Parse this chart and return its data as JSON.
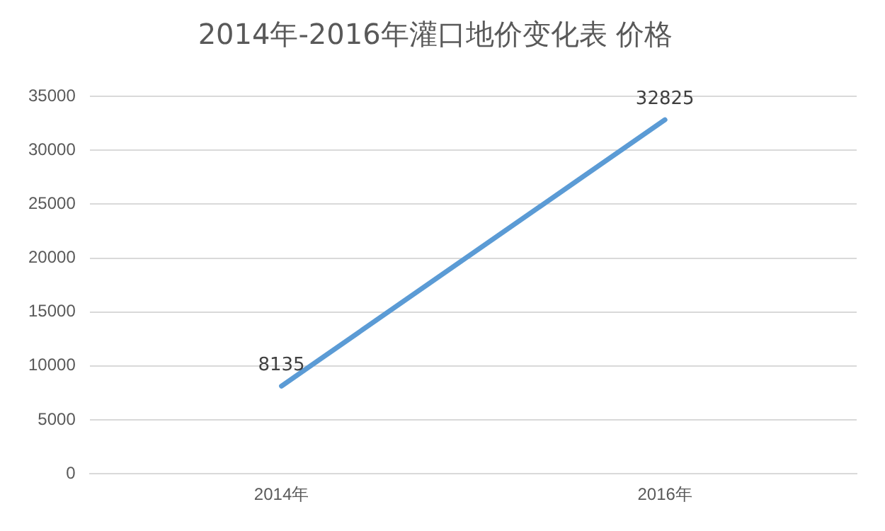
{
  "chart_data": {
    "type": "line",
    "title": "2014年-2016年灌口地价变化表 价格",
    "categories": [
      "2014年",
      "2016年"
    ],
    "series": [
      {
        "color": "#5b9bd5",
        "values": [
          8135,
          32825
        ]
      }
    ],
    "ylim": [
      0,
      35000
    ],
    "yticks": [
      0,
      5000,
      10000,
      15000,
      20000,
      25000,
      30000,
      35000
    ],
    "grid": "y",
    "legend": false,
    "marker": "none",
    "line_style": "solid",
    "data_labels": true
  }
}
